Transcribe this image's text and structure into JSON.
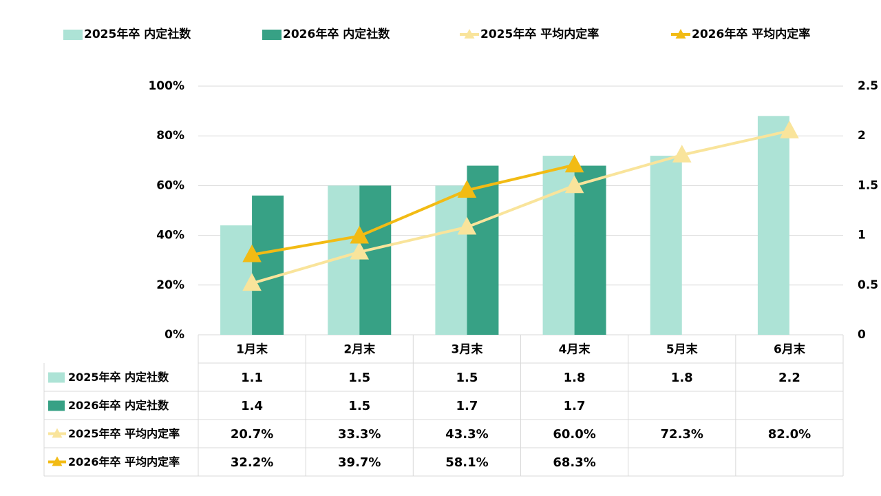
{
  "chart_data": {
    "type": "bar",
    "categories": [
      "1月末",
      "2月末",
      "3月末",
      "4月末",
      "5月末",
      "6月末"
    ],
    "series": [
      {
        "name": "2025年卒 内定社数",
        "kind": "bar",
        "axis": "right",
        "color": "#ade3d6",
        "values": [
          1.1,
          1.5,
          1.5,
          1.8,
          1.8,
          2.2
        ],
        "table": [
          "1.1",
          "1.5",
          "1.5",
          "1.8",
          "1.8",
          "2.2"
        ]
      },
      {
        "name": "2026年卒 内定社数",
        "kind": "bar",
        "axis": "right",
        "color": "#37a185",
        "values": [
          1.4,
          1.5,
          1.7,
          1.7,
          null,
          null
        ],
        "table": [
          "1.4",
          "1.5",
          "1.7",
          "1.7",
          "",
          ""
        ]
      },
      {
        "name": "2025年卒 平均内定率",
        "kind": "line",
        "axis": "left",
        "color": "#f9e49b",
        "values": [
          20.7,
          33.3,
          43.3,
          60.0,
          72.3,
          82.0
        ],
        "table": [
          "20.7%",
          "33.3%",
          "43.3%",
          "60.0%",
          "72.3%",
          "82.0%"
        ]
      },
      {
        "name": "2026年卒 平均内定率",
        "kind": "line",
        "axis": "left",
        "color": "#f2bb14",
        "values": [
          32.2,
          39.7,
          58.1,
          68.3,
          null,
          null
        ],
        "table": [
          "32.2%",
          "39.7%",
          "58.1%",
          "68.3%",
          "",
          ""
        ]
      }
    ],
    "y_left": {
      "range": [
        0,
        100
      ],
      "ticks": [
        "0%",
        "20%",
        "40%",
        "60%",
        "80%",
        "100%"
      ]
    },
    "y_right": {
      "range": [
        0,
        2.5
      ],
      "ticks": [
        "0",
        "0.5",
        "1",
        "1.5",
        "2",
        "2.5"
      ]
    },
    "grid": true,
    "legend": "top",
    "data_table": true
  }
}
